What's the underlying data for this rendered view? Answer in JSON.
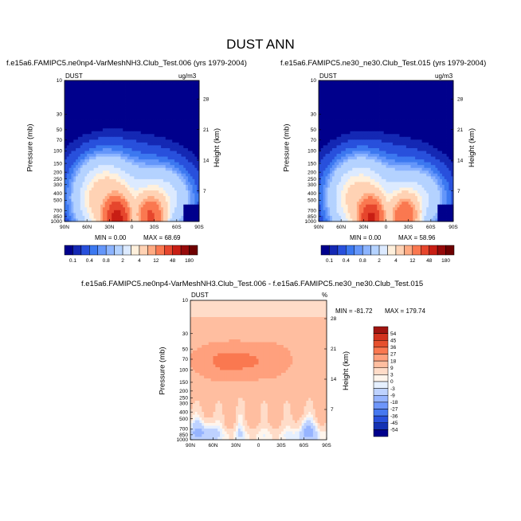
{
  "title": "DUST ANN",
  "colors": {
    "dust_levels": [
      "#00008c",
      "#1428b4",
      "#2850dc",
      "#3c78f0",
      "#6496fa",
      "#8cb4ff",
      "#b4d2ff",
      "#dceaff",
      "#fff0dc",
      "#ffd2b4",
      "#ffaa82",
      "#fa7850",
      "#e6462d",
      "#c81e14",
      "#960a0a",
      "#6e0000"
    ],
    "diff_levels": [
      "#00008c",
      "#1432b4",
      "#2850dc",
      "#4678f0",
      "#6e96fa",
      "#96b4ff",
      "#bed2ff",
      "#e6f0ff",
      "#fff5ec",
      "#ffdcc8",
      "#ffbea0",
      "#ffa07d",
      "#fa7850",
      "#e6502d",
      "#d2321e",
      "#a01410"
    ]
  },
  "chart_data": [
    {
      "type": "heatmap",
      "panel": "left",
      "title": "f.e15a6.FAMIPC5.ne0np4-VarMeshNH3.Club_Test.006 (yrs 1979-2004)",
      "variable": "DUST",
      "units": "ug/m3",
      "min_label": "MIN =   0.00",
      "max_label": "MAX =  68.69",
      "min": 0.0,
      "max": 68.69,
      "ylabel": "Pressure (mb)",
      "ylabel_right": "Height (km)",
      "xticks": [
        "90N",
        "60N",
        "30N",
        "0",
        "30S",
        "60S",
        "90S"
      ],
      "yticks": [
        "10",
        "30",
        "50",
        "70",
        "100",
        "150",
        "200",
        "250",
        "300",
        "400",
        "500",
        "700",
        "850",
        "1000"
      ],
      "yticks_right": [
        "28",
        "21",
        "14",
        "7"
      ]
    },
    {
      "type": "heatmap",
      "panel": "right",
      "title": "f.e15a6.FAMIPC5.ne30_ne30.Club_Test.015 (yrs 1979-2004)",
      "variable": "DUST",
      "units": "ug/m3",
      "min_label": "MIN =   0.00",
      "max_label": "MAX =  58.96",
      "min": 0.0,
      "max": 58.96,
      "ylabel": "Pressure (mb)",
      "ylabel_right": "Height (km)",
      "xticks": [
        "90N",
        "60N",
        "30N",
        "0",
        "30S",
        "60S",
        "90S"
      ],
      "yticks": [
        "10",
        "30",
        "50",
        "70",
        "100",
        "150",
        "200",
        "250",
        "300",
        "400",
        "500",
        "700",
        "850",
        "1000"
      ],
      "yticks_right": [
        "28",
        "21",
        "14",
        "7"
      ]
    },
    {
      "type": "heatmap",
      "panel": "difference",
      "title": "f.e15a6.FAMIPC5.ne0np4-VarMeshNH3.Club_Test.006 - f.e15a6.FAMIPC5.ne30_ne30.Club_Test.015",
      "variable": "DUST",
      "units": "%",
      "min_label": "MIN = -81.72",
      "max_label": "MAX = 179.74",
      "min": -81.72,
      "max": 179.74,
      "ylabel": "Pressure (mb)",
      "ylabel_right": "Height (km)",
      "xticks": [
        "90N",
        "60N",
        "30N",
        "0",
        "30S",
        "60S",
        "90S"
      ],
      "yticks": [
        "10",
        "30",
        "50",
        "70",
        "100",
        "150",
        "200",
        "250",
        "300",
        "400",
        "500",
        "700",
        "850",
        "1000"
      ],
      "yticks_right": [
        "28",
        "21",
        "14",
        "7"
      ]
    }
  ],
  "colorbars": {
    "dust": [
      "0.1",
      "0.4",
      "0.8",
      "2",
      "4",
      "12",
      "48",
      "180"
    ],
    "diff": [
      "54",
      "45",
      "36",
      "27",
      "18",
      "9",
      "3",
      "0",
      "-3",
      "-9",
      "-18",
      "-27",
      "-36",
      "-45",
      "-54"
    ]
  }
}
